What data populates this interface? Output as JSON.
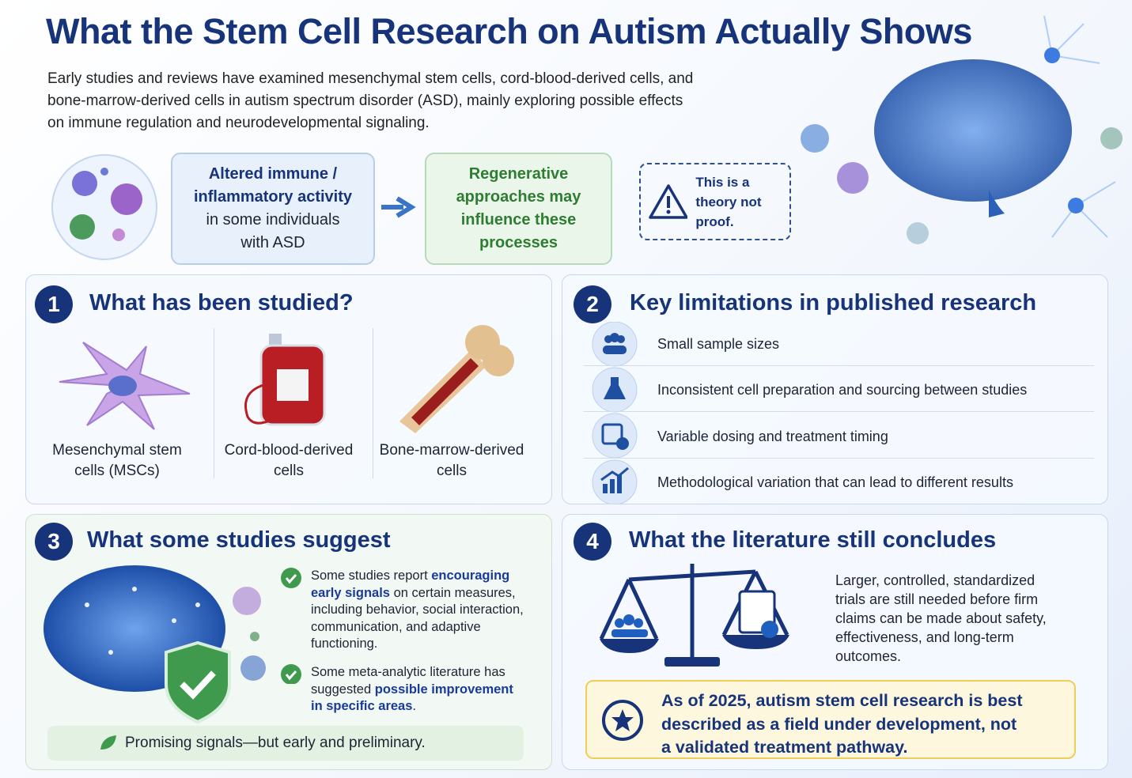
{
  "header": {
    "title": "What the Stem Cell Research on Autism Actually Shows",
    "intro": "Early studies and reviews have examined mesenchymal stem cells, cord-blood-derived cells, and bone-marrow-derived cells in autism spectrum disorder (ASD), mainly exploring possible effects on immune regulation and neurodevelopmental signaling."
  },
  "flow": {
    "box1": {
      "bold": "Altered immune / inflammatory activity",
      "text": "in some individuals with ASD"
    },
    "box2": "Regenerative approaches may influence these processes",
    "note": "This is a theory not proof."
  },
  "sections": [
    {
      "number": "1",
      "title": "What has been studied?",
      "items": [
        "Mesenchymal stem cells (MSCs)",
        "Cord-blood-derived cells",
        "Bone-marrow-derived cells"
      ]
    },
    {
      "number": "2",
      "title": "Key limitations in published research",
      "items": [
        "Small sample sizes",
        "Inconsistent cell preparation and sourcing between studies",
        "Variable dosing and treatment timing",
        "Methodological variation that can lead to different results"
      ]
    },
    {
      "number": "3",
      "title": "What some studies suggest",
      "points": [
        [
          "Some studies report ",
          "encouraging early signals",
          " on certain measures, including behavior, social interaction, communication, and adaptive functioning."
        ],
        [
          "Some meta-analytic literature has suggested ",
          "possible improvement in specific areas",
          "."
        ]
      ],
      "banner": "Promising signals—but early and preliminary."
    },
    {
      "number": "4",
      "title": "What the literature still concludes",
      "text": "Larger, controlled, standardized trials are still needed before firm claims can be made about safety, effectiveness, and long-term outcomes.",
      "callout": "As of 2025, autism stem cell research is best described as a field under development, not a validated treatment pathway."
    }
  ]
}
